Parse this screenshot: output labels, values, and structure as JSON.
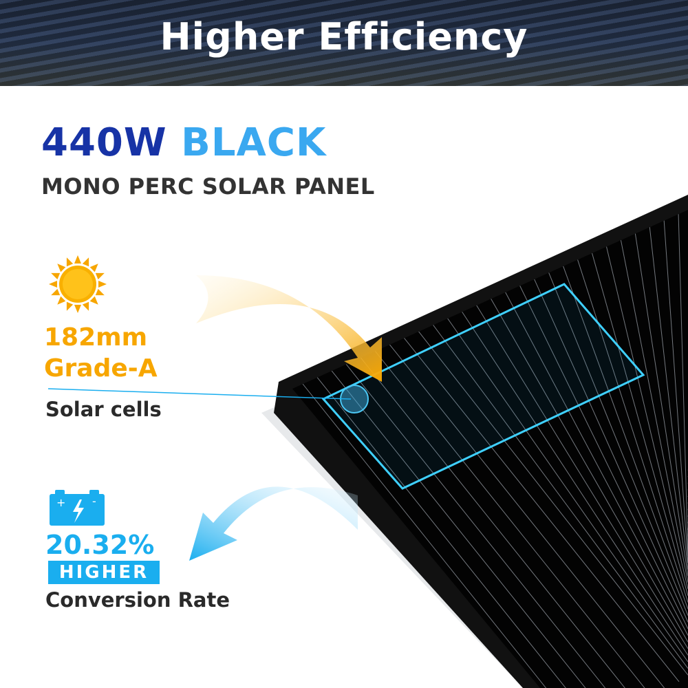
{
  "banner": {
    "title": "Higher Efficiency"
  },
  "product": {
    "wattage": "440W",
    "color_word": "BLACK",
    "subtitle": "MONO PERC SOLAR PANEL"
  },
  "features": [
    {
      "icon": "sun-icon",
      "line1": "182mm",
      "line2": "Grade-A",
      "caption": "Solar cells",
      "accent": "#f7a600"
    },
    {
      "icon": "battery-icon",
      "value": "20.32%",
      "badge": "HIGHER",
      "caption": "Conversion Rate",
      "accent": "#1aaeef"
    }
  ]
}
